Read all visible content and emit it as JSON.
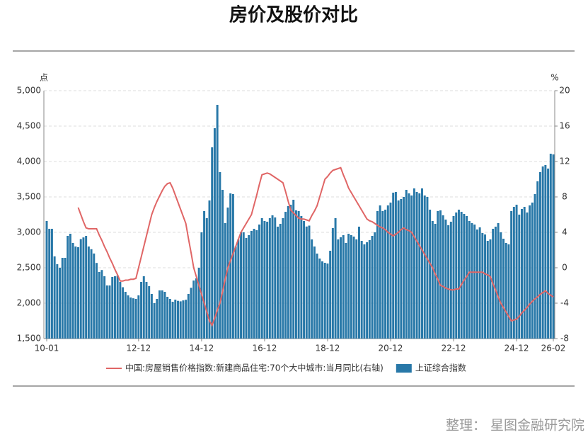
{
  "chart_data": {
    "type": "bar",
    "title": "房价及股价对比",
    "y_label": "点",
    "y2_label": "%",
    "source": "整理： 星图金融研究院",
    "ylim": [
      1500,
      5000
    ],
    "yticks": [
      {
        "value": 1500,
        "label": "1,500"
      },
      {
        "value": 2000,
        "label": "2,000"
      },
      {
        "value": 2500,
        "label": "2,500"
      },
      {
        "value": 3000,
        "label": "3,000"
      },
      {
        "value": 3500,
        "label": "3,500"
      },
      {
        "value": 4000,
        "label": "4,000"
      },
      {
        "value": 4500,
        "label": "4,500"
      },
      {
        "value": 5000,
        "label": "5,000"
      }
    ],
    "y2lim": [
      -8,
      20
    ],
    "y2ticks": [
      -8,
      -4,
      0,
      4,
      8,
      12,
      16,
      20
    ],
    "grid": true,
    "legend": "bottom",
    "categories": [
      "10-01",
      null,
      null,
      null,
      null,
      null,
      null,
      null,
      null,
      null,
      null,
      null,
      null,
      null,
      null,
      null,
      null,
      null,
      null,
      null,
      null,
      null,
      null,
      null,
      null,
      null,
      null,
      null,
      null,
      null,
      null,
      null,
      null,
      null,
      null,
      "12-12",
      null,
      null,
      null,
      null,
      null,
      null,
      null,
      null,
      null,
      null,
      null,
      null,
      null,
      null,
      null,
      null,
      null,
      null,
      null,
      null,
      null,
      null,
      null,
      "14-12",
      null,
      null,
      null,
      null,
      null,
      null,
      null,
      null,
      null,
      null,
      null,
      null,
      null,
      null,
      null,
      null,
      null,
      null,
      null,
      null,
      null,
      null,
      null,
      "16-12",
      null,
      null,
      null,
      null,
      null,
      null,
      null,
      null,
      null,
      null,
      null,
      null,
      null,
      null,
      null,
      null,
      null,
      null,
      null,
      null,
      null,
      null,
      null,
      "18-12",
      null,
      null,
      null,
      null,
      null,
      null,
      null,
      null,
      null,
      null,
      null,
      null,
      null,
      null,
      null,
      null,
      null,
      null,
      null,
      null,
      null,
      null,
      null,
      "20-12",
      null,
      null,
      null,
      null,
      null,
      null,
      null,
      null,
      null,
      null,
      null,
      null,
      null,
      null,
      null,
      null,
      null,
      null,
      null,
      null,
      null,
      null,
      null,
      "22-12",
      null,
      null,
      null,
      null,
      null,
      null,
      null,
      null,
      null,
      null,
      null,
      null,
      null,
      null,
      null,
      null,
      null,
      null,
      null,
      null,
      null,
      null,
      null,
      "24-12",
      null,
      null,
      null,
      null,
      null,
      null,
      null,
      null,
      null,
      null,
      null,
      null,
      null,
      "26-02"
    ],
    "series": [
      {
        "name": "中国:房屋销售价格指数:新建商品住宅:70个大中城市:当月同比(右轴)",
        "type": "line",
        "axis": "y2",
        "color": "#e06666",
        "values": [
          null,
          null,
          null,
          null,
          null,
          null,
          null,
          null,
          null,
          null,
          null,
          null,
          6.8,
          6.0,
          5.2,
          4.5,
          4.4,
          4.4,
          4.4,
          4.4,
          3.7,
          3.1,
          2.4,
          1.8,
          1.1,
          0.5,
          -0.2,
          -0.8,
          -1.5,
          -1.5,
          -1.4,
          -1.4,
          -1.3,
          -1.3,
          -1.2,
          0.0,
          1.2,
          2.4,
          3.6,
          4.8,
          6.0,
          6.8,
          7.5,
          8.1,
          8.7,
          9.2,
          9.5,
          9.6,
          9.0,
          8.2,
          7.4,
          6.6,
          5.8,
          5.0,
          3.3,
          1.7,
          0.0,
          -1.0,
          -2.0,
          -3.0,
          -4.0,
          -5.0,
          -6.0,
          -6.5,
          -5.7,
          -4.8,
          -4.0,
          -2.7,
          -1.3,
          0.0,
          0.8,
          1.6,
          2.4,
          3.2,
          4.0,
          4.5,
          5.0,
          5.5,
          6.0,
          7.1,
          8.2,
          9.4,
          10.5,
          10.6,
          10.7,
          10.6,
          10.4,
          10.2,
          10.0,
          9.8,
          9.6,
          8.6,
          7.5,
          6.5,
          6.2,
          5.9,
          5.6,
          5.5,
          5.5,
          5.4,
          5.3,
          5.9,
          6.4,
          7.0,
          8.0,
          9.0,
          10.0,
          10.3,
          10.7,
          11.0,
          11.1,
          11.2,
          11.3,
          10.5,
          9.8,
          9.0,
          8.5,
          8.0,
          7.5,
          7.0,
          6.5,
          6.0,
          5.5,
          5.3,
          5.2,
          5.0,
          4.8,
          4.6,
          4.5,
          4.3,
          4.0,
          3.8,
          3.6,
          3.8,
          4.0,
          4.3,
          4.5,
          4.3,
          4.2,
          4.0,
          3.5,
          3.0,
          2.5,
          2.0,
          1.5,
          1.0,
          0.5,
          0.0,
          -0.7,
          -1.3,
          -2.0,
          -2.1,
          -2.3,
          -2.4,
          -2.5,
          -2.5,
          -2.4,
          -2.4,
          -1.9,
          -1.4,
          -1.0,
          -0.5,
          -0.5,
          -0.5,
          -0.5,
          -0.5,
          -0.5,
          -0.7,
          -0.8,
          -1.0,
          -1.8,
          -2.5,
          -3.3,
          -4.0,
          -4.5,
          -5.0,
          -5.5,
          -6.0,
          -5.9,
          -5.8,
          -5.5,
          -5.1,
          -4.8,
          -4.5,
          -4.1,
          -3.8,
          -3.5,
          -3.3,
          -3.0,
          -2.8,
          -2.6,
          -2.9,
          -3.1,
          -3.3
        ]
      },
      {
        "name": "上证综合指数",
        "type": "bar",
        "color": "#2878a8",
        "values": [
          3160,
          3050,
          3050,
          2660,
          2550,
          2500,
          2640,
          2640,
          2950,
          2980,
          2850,
          2800,
          2790,
          2905,
          2928,
          2950,
          2800,
          2762,
          2701,
          2568,
          2440,
          2468,
          2380,
          2250,
          2250,
          2370,
          2380,
          2390,
          2300,
          2225,
          2160,
          2110,
          2080,
          2069,
          2060,
          2110,
          2300,
          2380,
          2300,
          2240,
          2130,
          2000,
          2060,
          2180,
          2180,
          2160,
          2090,
          2060,
          2020,
          2050,
          2033,
          2026,
          2039,
          2048,
          2130,
          2217,
          2320,
          2350,
          2500,
          3000,
          3300,
          3200,
          3450,
          4200,
          4470,
          4800,
          3850,
          3600,
          3130,
          3350,
          3550,
          3540,
          2800,
          2900,
          3000,
          3000,
          2920,
          2960,
          3020,
          3050,
          3030,
          3110,
          3200,
          3160,
          3150,
          3200,
          3240,
          3210,
          3080,
          3120,
          3200,
          3290,
          3370,
          3390,
          3460,
          3310,
          3300,
          3230,
          3160,
          3082,
          3095,
          2900,
          2800,
          2700,
          2630,
          2590,
          2570,
          2560,
          2740,
          3060,
          3200,
          2900,
          2930,
          2960,
          2850,
          2980,
          2960,
          2940,
          2900,
          3080,
          2880,
          2830,
          2860,
          2890,
          2950,
          3000,
          3300,
          3380,
          3300,
          3320,
          3380,
          3420,
          3560,
          3570,
          3450,
          3470,
          3500,
          3600,
          3550,
          3520,
          3620,
          3570,
          3550,
          3620,
          3520,
          3500,
          3320,
          3160,
          3120,
          3300,
          3310,
          3240,
          3180,
          3100,
          3150,
          3230,
          3280,
          3320,
          3290,
          3260,
          3230,
          3160,
          3130,
          3110,
          3040,
          3070,
          2990,
          2970,
          2880,
          2900,
          3050,
          3080,
          3130,
          3000,
          2910,
          2850,
          2830,
          3300,
          3360,
          3390,
          3250,
          3330,
          3360,
          3280,
          3380,
          3420,
          3540,
          3720,
          3850,
          3930,
          3950,
          3900,
          4110,
          4100
        ]
      }
    ]
  }
}
